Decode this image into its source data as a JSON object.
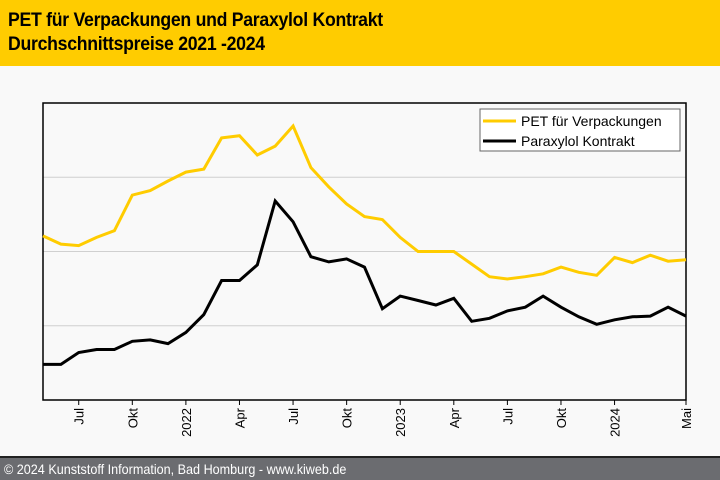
{
  "header": {
    "title_line1": "PET für Verpackungen und Paraxylol Kontrakt",
    "title_line2": "Durchschnittspreise 2021 -2024"
  },
  "footer": {
    "text": "© 2024 Kunststoff Information, Bad Homburg - www.kiweb.de"
  },
  "colors": {
    "header_bg": "#ffcc00",
    "pet": "#ffcc00",
    "paraxylol": "#000000",
    "footer_bg": "#6b6c70"
  },
  "chart_data": {
    "type": "line",
    "title": "PET für Verpackungen und Paraxylol Kontrakt Durchschnittspreise 2021 -2024",
    "xlabel": "",
    "ylabel": "",
    "y_units_note": "no y-axis labels shown; values in relative gridline units (bottom axis = 0, each gridline = 1)",
    "ylim": [
      0,
      4
    ],
    "grid": true,
    "legend_position": "top-right",
    "x": [
      "2021-05",
      "2021-06",
      "2021-07",
      "2021-08",
      "2021-09",
      "2021-10",
      "2021-11",
      "2021-12",
      "2022-01",
      "2022-02",
      "2022-03",
      "2022-04",
      "2022-05",
      "2022-06",
      "2022-07",
      "2022-08",
      "2022-09",
      "2022-10",
      "2022-11",
      "2022-12",
      "2023-01",
      "2023-02",
      "2023-03",
      "2023-04",
      "2023-05",
      "2023-06",
      "2023-07",
      "2023-08",
      "2023-09",
      "2023-10",
      "2023-11",
      "2023-12",
      "2024-01",
      "2024-02",
      "2024-03",
      "2024-04",
      "2024-05"
    ],
    "xticks": [
      {
        "label": "Jul",
        "index": 2
      },
      {
        "label": "Okt",
        "index": 5
      },
      {
        "label": "2022",
        "index": 8
      },
      {
        "label": "Apr",
        "index": 11
      },
      {
        "label": "Jul",
        "index": 14
      },
      {
        "label": "Okt",
        "index": 17
      },
      {
        "label": "2023",
        "index": 20
      },
      {
        "label": "Apr",
        "index": 23
      },
      {
        "label": "Jul",
        "index": 26
      },
      {
        "label": "Okt",
        "index": 29
      },
      {
        "label": "2024",
        "index": 32
      },
      {
        "label": "Mai",
        "index": 36
      }
    ],
    "series": [
      {
        "name": "PET für Verpackungen",
        "color": "#ffcc00",
        "values": [
          2.21,
          2.1,
          2.08,
          2.19,
          2.28,
          2.76,
          2.82,
          2.95,
          3.07,
          3.11,
          3.53,
          3.56,
          3.3,
          3.42,
          3.69,
          3.13,
          2.87,
          2.64,
          2.47,
          2.43,
          2.19,
          2.0,
          2.0,
          2.0,
          1.83,
          1.66,
          1.63,
          1.66,
          1.7,
          1.79,
          1.72,
          1.68,
          1.92,
          1.85,
          1.95,
          1.87,
          1.89
        ]
      },
      {
        "name": "Paraxylol Kontrakt",
        "color": "#000000",
        "values": [
          0.48,
          0.48,
          0.64,
          0.68,
          0.68,
          0.79,
          0.81,
          0.76,
          0.91,
          1.15,
          1.61,
          1.61,
          1.82,
          2.68,
          2.4,
          1.93,
          1.86,
          1.9,
          1.79,
          1.23,
          1.4,
          1.34,
          1.28,
          1.37,
          1.06,
          1.1,
          1.2,
          1.25,
          1.4,
          1.25,
          1.12,
          1.02,
          1.08,
          1.12,
          1.13,
          1.25,
          1.13
        ]
      }
    ]
  }
}
